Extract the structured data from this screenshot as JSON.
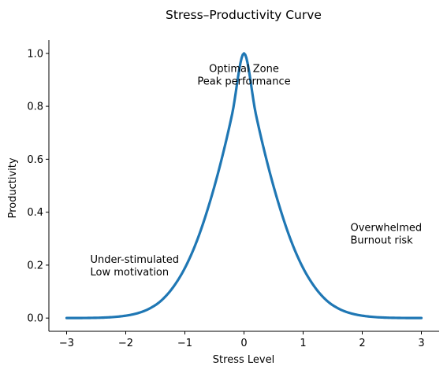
{
  "chart_data": {
    "type": "line",
    "title": "Stress–Productivity Curve",
    "xlabel": "Stress Level",
    "ylabel": "Productivity",
    "xlim": [
      -3.3,
      3.3
    ],
    "ylim": [
      -0.05,
      1.05
    ],
    "xticks": [
      -3,
      -2,
      -1,
      0,
      1,
      2,
      3
    ],
    "xtick_labels": [
      "−3",
      "−2",
      "−1",
      "0",
      "1",
      "2",
      "3"
    ],
    "yticks": [
      0.0,
      0.2,
      0.4,
      0.6,
      0.8,
      1.0
    ],
    "ytick_labels": [
      "0.0",
      "0.2",
      "0.4",
      "0.6",
      "0.8",
      "1.0"
    ],
    "grid": false,
    "series": [
      {
        "color": "#1f77b4",
        "x": [
          -3.0,
          -2.8,
          -2.6,
          -2.4,
          -2.2,
          -2.0,
          -1.8,
          -1.6,
          -1.4,
          -1.2,
          -1.0,
          -0.8,
          -0.6,
          -0.4,
          -0.2,
          0.0,
          0.2,
          0.4,
          0.6,
          0.8,
          1.0,
          1.2,
          1.4,
          1.6,
          1.8,
          2.0,
          2.2,
          2.4,
          2.6,
          2.8,
          3.0
        ],
        "y": [
          0.0001,
          0.0002,
          0.0006,
          0.0016,
          0.004,
          0.009,
          0.0183,
          0.0357,
          0.0659,
          0.1161,
          0.1889,
          0.2897,
          0.4215,
          0.5812,
          0.7711,
          1.0,
          0.7711,
          0.5812,
          0.4215,
          0.2897,
          0.1889,
          0.1161,
          0.0659,
          0.0357,
          0.0183,
          0.009,
          0.004,
          0.0016,
          0.0006,
          0.0002,
          0.0001
        ]
      }
    ],
    "annotations": [
      {
        "x": 0.0,
        "y": 0.92,
        "lines": [
          "Optimal Zone",
          "Peak performance"
        ],
        "align": "center"
      },
      {
        "x": -2.6,
        "y": 0.2,
        "lines": [
          "Under-stimulated",
          "Low motivation"
        ],
        "align": "left"
      },
      {
        "x": 1.8,
        "y": 0.32,
        "lines": [
          "Overwhelmed",
          "Burnout risk"
        ],
        "align": "left"
      }
    ]
  }
}
